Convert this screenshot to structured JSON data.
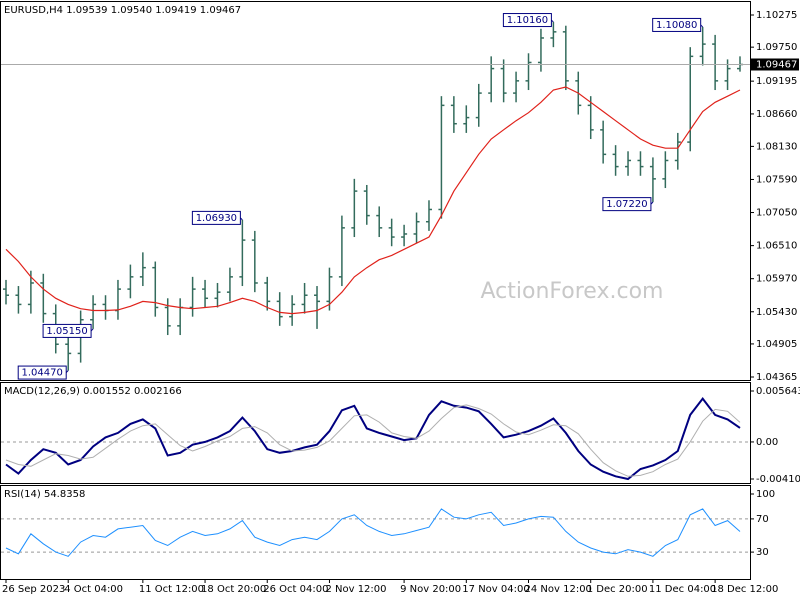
{
  "chart_data": [
    {
      "type": "ohlc",
      "title": "EURUSD,H4 1.09539 1.09540 1.09419 1.09467",
      "watermark": "ActionForex.com",
      "color": "#336b5c",
      "open": [
        1.058,
        1.057,
        1.0555,
        1.059,
        1.054,
        1.049,
        1.0475,
        1.053,
        1.0555,
        1.0545,
        1.058,
        1.06,
        1.0615,
        1.055,
        1.052,
        1.055,
        1.058,
        1.0565,
        1.0575,
        1.06,
        1.066,
        1.059,
        1.056,
        1.0535,
        1.0555,
        1.057,
        1.056,
        1.06,
        1.068,
        1.074,
        1.07,
        1.068,
        1.0665,
        1.067,
        1.069,
        1.071,
        1.088,
        1.085,
        1.086,
        1.09,
        1.094,
        1.09,
        1.092,
        1.095,
        1.099,
        1.1,
        1.092,
        1.088,
        1.084,
        1.08,
        1.078,
        1.079,
        1.078,
        1.076,
        1.079,
        1.082,
        1.096,
        1.098,
        1.092,
        1.094
      ],
      "high": [
        1.0595,
        1.0585,
        1.061,
        1.0605,
        1.0555,
        1.0505,
        1.0545,
        1.057,
        1.057,
        1.0595,
        1.062,
        1.064,
        1.0625,
        1.0565,
        1.0565,
        1.06,
        1.0595,
        1.059,
        1.0615,
        1.0693,
        1.0675,
        1.06,
        1.0575,
        1.057,
        1.059,
        1.0585,
        1.0615,
        1.07,
        1.076,
        1.075,
        1.0715,
        1.0695,
        1.0685,
        1.0705,
        1.0725,
        1.0895,
        1.0895,
        1.088,
        1.0915,
        1.096,
        1.0955,
        1.0935,
        1.0965,
        1.1005,
        1.1016,
        1.101,
        1.0935,
        1.0895,
        1.0855,
        1.0815,
        1.0805,
        1.0805,
        1.0795,
        1.0805,
        1.0835,
        1.0975,
        1.1008,
        1.0995,
        1.0955,
        1.096
      ],
      "low": [
        1.0555,
        1.054,
        1.054,
        1.0525,
        1.0475,
        1.0447,
        1.046,
        1.0515,
        1.053,
        1.053,
        1.0565,
        1.0585,
        1.0535,
        1.0505,
        1.0505,
        1.0535,
        1.055,
        1.055,
        1.056,
        1.0585,
        1.0575,
        1.0545,
        1.052,
        1.052,
        1.054,
        1.0515,
        1.0545,
        1.0585,
        1.0665,
        1.0685,
        1.0665,
        1.065,
        1.065,
        1.0655,
        1.0675,
        1.0695,
        1.0835,
        1.0835,
        1.0845,
        1.0885,
        1.0885,
        1.0885,
        1.0905,
        1.0935,
        1.0975,
        1.0905,
        1.0865,
        1.0825,
        1.0785,
        1.0765,
        1.0765,
        1.0765,
        1.0722,
        1.0745,
        1.0775,
        1.0805,
        1.0945,
        1.0905,
        1.0905,
        1.0935
      ],
      "close": [
        1.057,
        1.0555,
        1.059,
        1.054,
        1.049,
        1.0475,
        1.053,
        1.0555,
        1.0545,
        1.058,
        1.06,
        1.0615,
        1.055,
        1.052,
        1.055,
        1.058,
        1.0565,
        1.0575,
        1.06,
        1.066,
        1.059,
        1.056,
        1.0535,
        1.0555,
        1.057,
        1.056,
        1.06,
        1.068,
        1.074,
        1.07,
        1.068,
        1.0665,
        1.067,
        1.069,
        1.071,
        1.088,
        1.085,
        1.086,
        1.09,
        1.094,
        1.09,
        1.092,
        1.095,
        1.099,
        1.1,
        1.092,
        1.088,
        1.084,
        1.08,
        1.078,
        1.079,
        1.078,
        1.076,
        1.079,
        1.082,
        1.096,
        1.098,
        1.092,
        1.094,
        1.09467
      ],
      "lines": [
        {
          "color": "#e0221b",
          "values": [
            1.0645,
            1.0625,
            1.06,
            1.058,
            1.0565,
            1.0555,
            1.0548,
            1.0545,
            1.0545,
            1.0546,
            1.0552,
            1.056,
            1.0558,
            1.0553,
            1.055,
            1.0548,
            1.055,
            1.0552,
            1.0558,
            1.0565,
            1.056,
            1.055,
            1.0542,
            1.054,
            1.0542,
            1.0545,
            1.0555,
            1.0575,
            1.06,
            1.0615,
            1.0628,
            1.0635,
            1.0645,
            1.0655,
            1.0665,
            1.07,
            1.074,
            1.077,
            1.08,
            1.0825,
            1.084,
            1.0855,
            1.0868,
            1.0885,
            1.0905,
            1.091,
            1.09,
            1.0885,
            1.087,
            1.0855,
            1.084,
            1.0825,
            1.0815,
            1.081,
            1.081,
            1.084,
            1.087,
            1.0885,
            1.0895,
            1.0905
          ]
        }
      ],
      "last_price": 1.09467,
      "annotations": [
        {
          "value": 1.1016,
          "label": "1.10160"
        },
        {
          "value": 1.1008,
          "label": "1.10080"
        },
        {
          "value": 1.0722,
          "label": "1.07220"
        },
        {
          "value": 1.0693,
          "label": "1.06930"
        },
        {
          "value": 1.0515,
          "label": "1.05150"
        },
        {
          "value": 1.0447,
          "label": "1.04470"
        }
      ],
      "ylim": [
        1.04365,
        1.10275
      ],
      "yticks": [
        1.10275,
        {
          "value": 1.0975,
          "label": "1.09750"
        },
        1.09195,
        {
          "value": 1.0866,
          "label": "1.08660"
        },
        {
          "value": 1.0813,
          "label": "1.08130"
        },
        {
          "value": 1.0759,
          "label": "1.07590"
        },
        {
          "value": 1.0705,
          "label": "1.07050"
        },
        {
          "value": 1.0651,
          "label": "1.06510"
        },
        {
          "value": 1.0597,
          "label": "1.05970"
        },
        {
          "value": 1.0543,
          "label": "1.05430"
        },
        1.04905,
        1.04365
      ]
    },
    {
      "type": "line",
      "title": "MACD(12,26,9) 0.001552 0.002166",
      "lines": [
        {
          "color": "#000080",
          "width": 2,
          "values": [
            -0.0025,
            -0.0035,
            -0.002,
            -0.0008,
            -0.0012,
            -0.0025,
            -0.002,
            -0.0005,
            0.0005,
            0.001,
            0.002,
            0.0025,
            0.0015,
            -0.0015,
            -0.0012,
            -0.0003,
            0,
            0.0005,
            0.0012,
            0.0027,
            0.0012,
            -0.0008,
            -0.0012,
            -0.001,
            -0.0006,
            -0.0003,
            0.0012,
            0.0035,
            0.004,
            0.0015,
            0.001,
            0.0006,
            0.0002,
            0.0004,
            0.003,
            0.0045,
            0.004,
            0.0038,
            0.0034,
            0.002,
            0.0005,
            0.0008,
            0.0012,
            0.0018,
            0.0026,
            0.001,
            -0.001,
            -0.0025,
            -0.0033,
            -0.0038,
            -0.0041,
            -0.003,
            -0.0026,
            -0.002,
            -0.001,
            0.003,
            0.0048,
            0.003,
            0.0025,
            0.001552
          ]
        },
        {
          "color": "#b0b0b0",
          "width": 1,
          "values": [
            -0.002,
            -0.0025,
            -0.0027,
            -0.002,
            -0.0013,
            -0.0015,
            -0.0019,
            -0.0017,
            -0.0007,
            0.0003,
            0.0012,
            0.0018,
            0.002,
            0.0008,
            -0.0004,
            -0.001,
            -0.0005,
            0.0001,
            0.0006,
            0.0015,
            0.0017,
            0.001,
            -0.0003,
            -0.001,
            -0.0009,
            -0.0006,
            0.0001,
            0.0015,
            0.0029,
            0.003,
            0.0022,
            0.001,
            0.0006,
            0.0004,
            0.0012,
            0.0026,
            0.0038,
            0.0041,
            0.0037,
            0.0031,
            0.002,
            0.0011,
            0.0008,
            0.0013,
            0.0019,
            0.0018,
            0.0009,
            -0.0008,
            -0.0023,
            -0.0032,
            -0.0038,
            -0.0037,
            -0.0033,
            -0.0025,
            -0.0019,
            0,
            0.0023,
            0.0036,
            0.0034,
            0.002166
          ]
        }
      ],
      "ylim": [
        -0.004104,
        0.005643
      ],
      "yticks": [
        0.005643,
        {
          "value": 0,
          "label": "0.00"
        },
        -0.004104
      ],
      "levels": [
        0
      ]
    },
    {
      "type": "line",
      "title": "RSI(14) 54.8358",
      "categories": [
        "26 Sep 2023",
        null,
        null,
        null,
        null,
        "4 Oct 04:00",
        null,
        null,
        null,
        null,
        null,
        "11 Oct 12:00",
        null,
        null,
        null,
        null,
        "18 Oct 20:00",
        null,
        null,
        null,
        null,
        "26 Oct 04:00",
        null,
        null,
        null,
        null,
        "2 Nov 12:00",
        null,
        null,
        null,
        null,
        null,
        "9 Nov 20:00",
        null,
        null,
        null,
        null,
        "17 Nov 04:00",
        null,
        null,
        null,
        null,
        "24 Nov 12:00",
        null,
        null,
        null,
        null,
        "1 Dec 20:00",
        null,
        null,
        null,
        null,
        "11 Dec 04:00",
        null,
        null,
        null,
        null,
        "18 Dec 12:00",
        null,
        null
      ],
      "lines": [
        {
          "color": "#1e90ff",
          "width": 1,
          "values": [
            35,
            28,
            52,
            40,
            30,
            25,
            42,
            50,
            48,
            58,
            60,
            62,
            44,
            38,
            48,
            55,
            50,
            52,
            58,
            68,
            48,
            42,
            38,
            45,
            48,
            45,
            55,
            70,
            75,
            62,
            55,
            50,
            52,
            56,
            60,
            82,
            72,
            70,
            75,
            78,
            62,
            65,
            70,
            73,
            72,
            55,
            42,
            35,
            30,
            28,
            33,
            30,
            25,
            38,
            45,
            75,
            82,
            62,
            68,
            54.8358
          ]
        }
      ],
      "ylim": [
        0,
        100
      ],
      "yticks": [
        100,
        70,
        30
      ],
      "levels": [
        70,
        30
      ]
    }
  ]
}
